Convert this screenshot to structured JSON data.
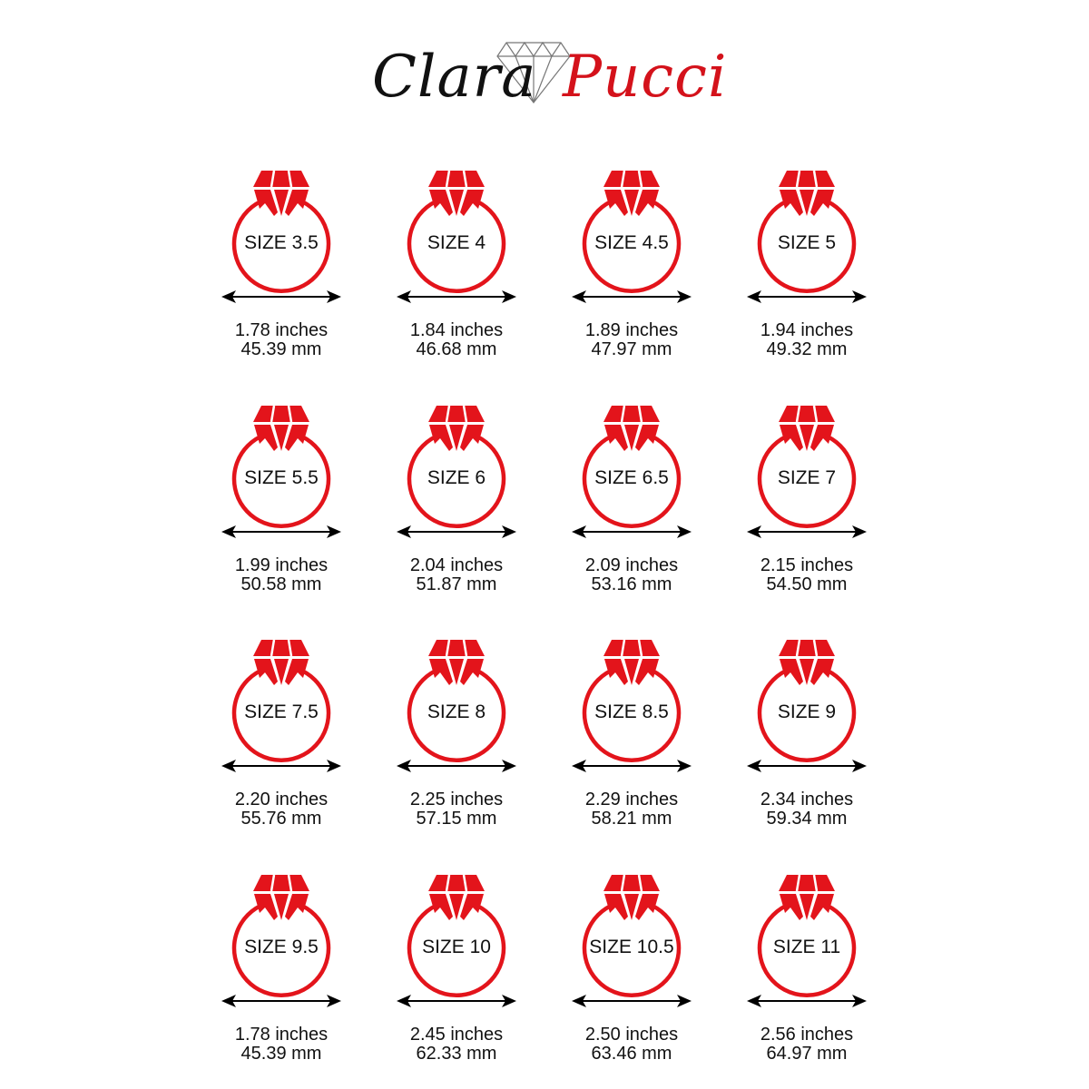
{
  "brand": {
    "first": "Clara",
    "second": "Pucci"
  },
  "colors": {
    "ring": "#e3141b",
    "arrow": "#000000",
    "brand_red": "#d4121b"
  },
  "sizes": [
    {
      "label": "SIZE 3.5",
      "inches": "1.78 inches",
      "mm": "45.39 mm"
    },
    {
      "label": "SIZE 4",
      "inches": "1.84 inches",
      "mm": "46.68 mm"
    },
    {
      "label": "SIZE 4.5",
      "inches": "1.89 inches",
      "mm": "47.97 mm"
    },
    {
      "label": "SIZE 5",
      "inches": "1.94 inches",
      "mm": "49.32 mm"
    },
    {
      "label": "SIZE 5.5",
      "inches": "1.99 inches",
      "mm": "50.58 mm"
    },
    {
      "label": "SIZE 6",
      "inches": "2.04 inches",
      "mm": "51.87 mm"
    },
    {
      "label": "SIZE 6.5",
      "inches": "2.09 inches",
      "mm": "53.16 mm"
    },
    {
      "label": "SIZE 7",
      "inches": "2.15 inches",
      "mm": "54.50 mm"
    },
    {
      "label": "SIZE 7.5",
      "inches": "2.20 inches",
      "mm": "55.76 mm"
    },
    {
      "label": "SIZE 8",
      "inches": "2.25 inches",
      "mm": "57.15 mm"
    },
    {
      "label": "SIZE 8.5",
      "inches": "2.29 inches",
      "mm": "58.21 mm"
    },
    {
      "label": "SIZE 9",
      "inches": "2.34 inches",
      "mm": "59.34 mm"
    },
    {
      "label": "SIZE 9.5",
      "inches": "1.78 inches",
      "mm": "45.39 mm"
    },
    {
      "label": "SIZE 10",
      "inches": "2.45 inches",
      "mm": "62.33 mm"
    },
    {
      "label": "SIZE 10.5",
      "inches": "2.50 inches",
      "mm": "63.46 mm"
    },
    {
      "label": "SIZE 11",
      "inches": "2.56 inches",
      "mm": "64.97 mm"
    }
  ]
}
